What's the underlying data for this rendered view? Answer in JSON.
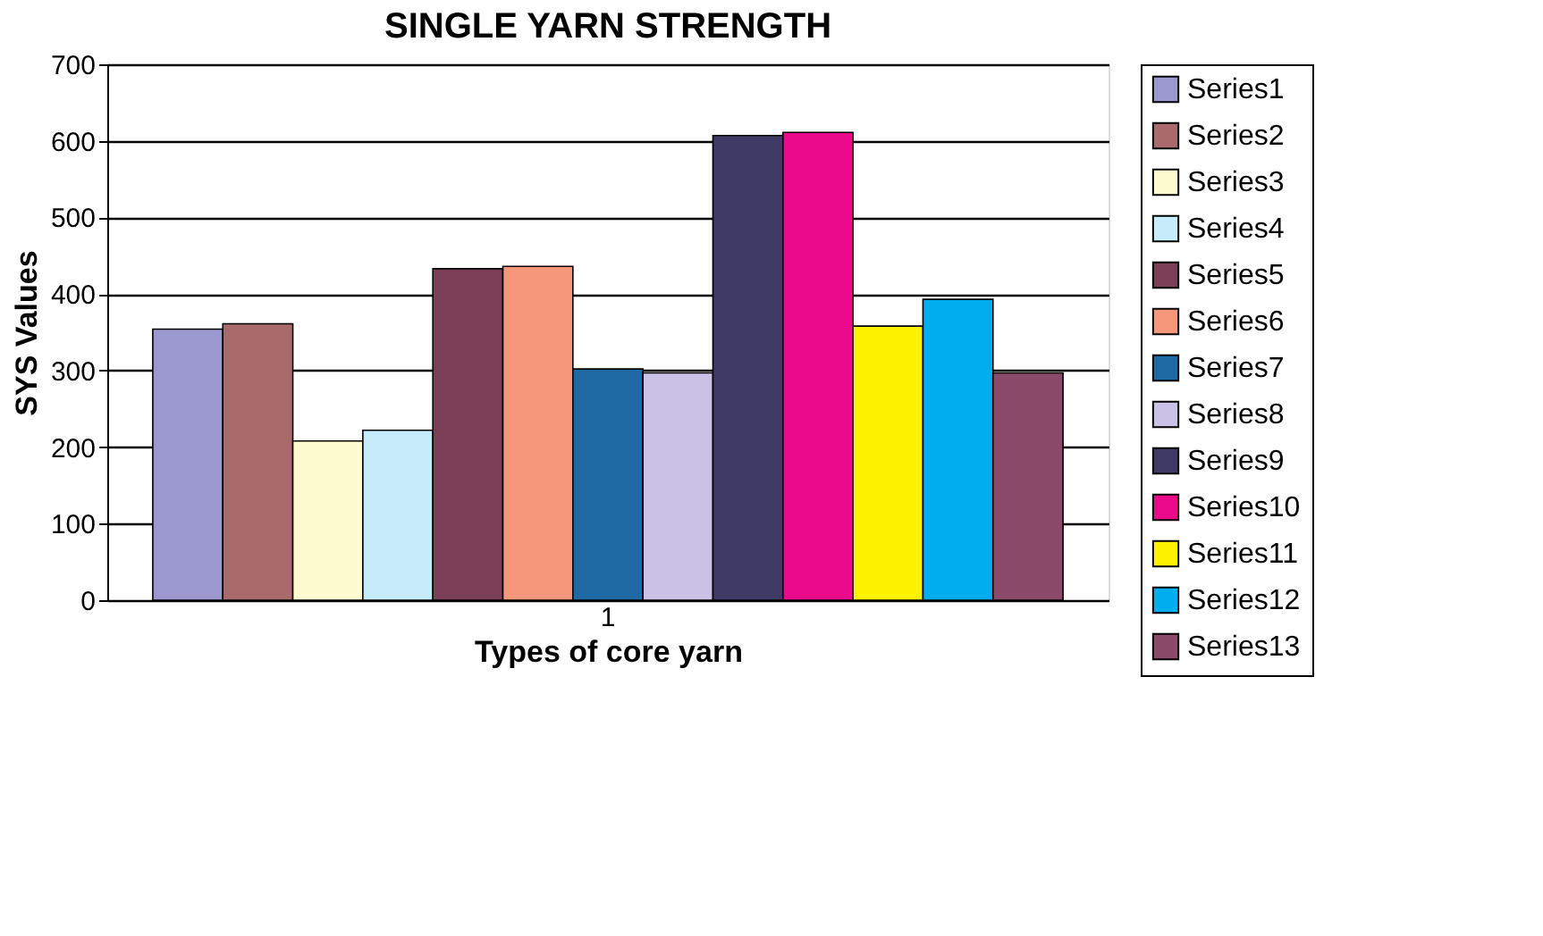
{
  "chart_data": {
    "type": "bar",
    "title": "SINGLE YARN STRENGTH",
    "xlabel": "Types of core yarn",
    "ylabel": "SYS  Values",
    "categories": [
      "1"
    ],
    "ylim": [
      0,
      700
    ],
    "yticks": [
      0,
      100,
      200,
      300,
      400,
      500,
      600,
      700
    ],
    "grid": "y",
    "legend": "right",
    "series": [
      {
        "name": "Series1",
        "color": "#9b98cf",
        "values": [
          354
        ]
      },
      {
        "name": "Series2",
        "color": "#a86a6a",
        "values": [
          361
        ]
      },
      {
        "name": "Series3",
        "color": "#fffbd0",
        "values": [
          208
        ]
      },
      {
        "name": "Series4",
        "color": "#c6ecfb",
        "values": [
          222
        ]
      },
      {
        "name": "Series5",
        "color": "#7b3f57",
        "values": [
          433
        ]
      },
      {
        "name": "Series6",
        "color": "#f4977a",
        "values": [
          436
        ]
      },
      {
        "name": "Series7",
        "color": "#1f6aa5",
        "values": [
          302
        ]
      },
      {
        "name": "Series8",
        "color": "#c9c2e6",
        "values": [
          297
        ]
      },
      {
        "name": "Series9",
        "color": "#3f3a66",
        "values": [
          607
        ]
      },
      {
        "name": "Series10",
        "color": "#ea0a8b",
        "values": [
          611
        ]
      },
      {
        "name": "Series11",
        "color": "#fff200",
        "values": [
          358
        ]
      },
      {
        "name": "Series12",
        "color": "#00aeef",
        "values": [
          393
        ]
      },
      {
        "name": "Series13",
        "color": "#8b4a6a",
        "values": [
          297
        ]
      }
    ]
  }
}
